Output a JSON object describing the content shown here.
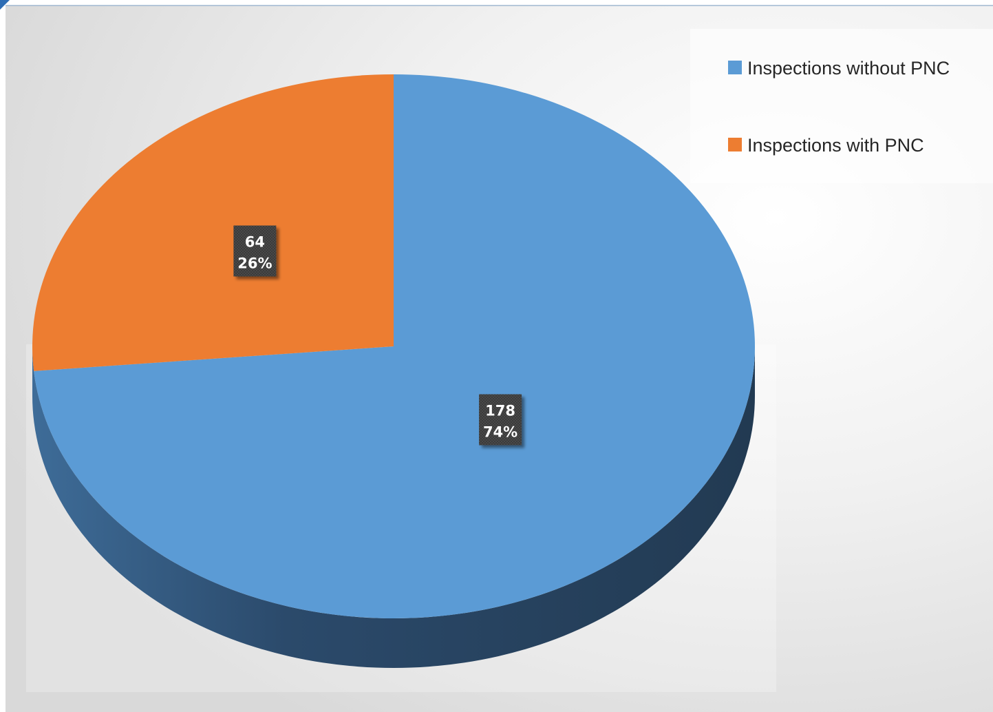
{
  "chart_data": {
    "type": "pie",
    "title": "",
    "style": "3d",
    "legend_position": "top-right",
    "series": [
      {
        "name": "Inspections without PNC",
        "value": 178,
        "percent": "74%",
        "color": "#5B9BD5",
        "side_color": "#233C55"
      },
      {
        "name": "Inspections with PNC",
        "value": 64,
        "percent": "26%",
        "color": "#ED7D31",
        "side_color": "#8A4A1E"
      }
    ]
  }
}
